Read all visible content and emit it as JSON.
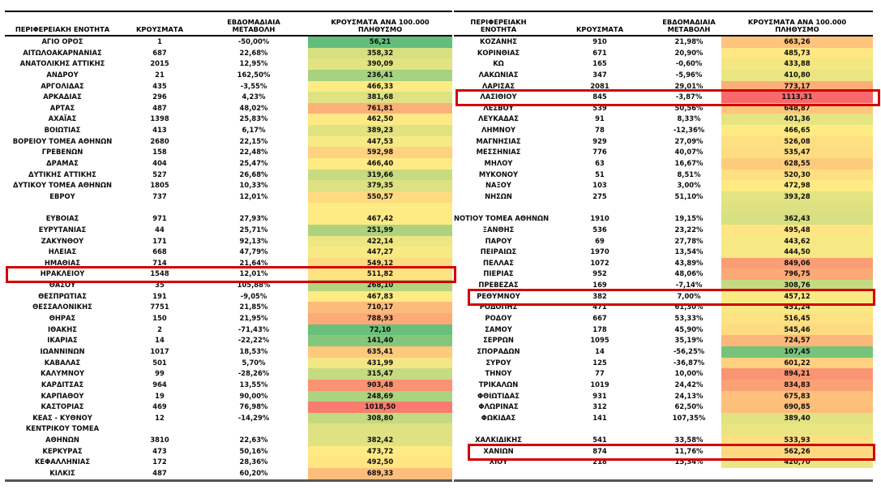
{
  "color_scale": {
    "min_value": 56.21,
    "mid_value": 467.42,
    "max_value": 1113.31,
    "min_color": "#63BE7B",
    "mid_color": "#FFEB84",
    "max_color": "#F8696B"
  },
  "highlight_color": "#d40000",
  "tables": [
    {
      "id": "left",
      "headers": {
        "region": "ΠΕΡΙΦΕΡΕΙΑΚΗ ΕΝΟΤΗΤΑ",
        "cases": "ΚΡΟΥΣΜΑΤΑ",
        "weekly": "ΕΒΔΟΜΑΔΙΑΙΑ\nΜΕΤΑΒΟΛΗ",
        "per100k": "ΚΡΟΥΣΜΑΤΑ ΑΝΑ 100.000\nΠΛΗΘΥΣΜΟ"
      },
      "rows": [
        {
          "region": "ΑΓΙΟ ΟΡΟΣ",
          "cases": "1",
          "weekly": "-50,00%",
          "per100k": "56,21",
          "v": 56.21
        },
        {
          "region": "ΑΙΤΩΛΟΑΚΑΡΝΑΝΙΑΣ",
          "cases": "687",
          "weekly": "22,68%",
          "per100k": "358,32",
          "v": 358.32
        },
        {
          "region": "ΑΝΑΤΟΛΙΚΗΣ ΑΤΤΙΚΗΣ",
          "cases": "2015",
          "weekly": "12,95%",
          "per100k": "390,09",
          "v": 390.09
        },
        {
          "region": "ΑΝΔΡΟΥ",
          "cases": "21",
          "weekly": "162,50%",
          "per100k": "236,41",
          "v": 236.41
        },
        {
          "region": "ΑΡΓΟΛΙΔΑΣ",
          "cases": "435",
          "weekly": "-3,55%",
          "per100k": "466,33",
          "v": 466.33
        },
        {
          "region": "ΑΡΚΑΔΙΑΣ",
          "cases": "296",
          "weekly": "4,23%",
          "per100k": "381,68",
          "v": 381.68
        },
        {
          "region": "ΑΡΤΑΣ",
          "cases": "487",
          "weekly": "48,02%",
          "per100k": "761,81",
          "v": 761.81
        },
        {
          "region": "ΑΧΑΪΑΣ",
          "cases": "1398",
          "weekly": "25,83%",
          "per100k": "462,50",
          "v": 462.5
        },
        {
          "region": "ΒΟΙΩΤΙΑΣ",
          "cases": "413",
          "weekly": "6,17%",
          "per100k": "389,23",
          "v": 389.23
        },
        {
          "region": "ΒΟΡΕΙΟΥ ΤΟΜΕΑ ΑΘΗΝΩΝ",
          "cases": "2680",
          "weekly": "22,15%",
          "per100k": "447,53",
          "v": 447.53
        },
        {
          "region": "ΓΡΕΒΕΝΩΝ",
          "cases": "158",
          "weekly": "22,48%",
          "per100k": "592,98",
          "v": 592.98
        },
        {
          "region": "ΔΡΑΜΑΣ",
          "cases": "404",
          "weekly": "25,47%",
          "per100k": "466,40",
          "v": 466.4
        },
        {
          "region": "ΔΥΤΙΚΗΣ ΑΤΤΙΚΗΣ",
          "cases": "527",
          "weekly": "26,68%",
          "per100k": "319,66",
          "v": 319.66
        },
        {
          "region": "ΔΥΤΙΚΟΥ ΤΟΜΕΑ ΑΘΗΝΩΝ",
          "cases": "1805",
          "weekly": "10,33%",
          "per100k": "379,35",
          "v": 379.35
        },
        {
          "region": "ΕΒΡΟΥ",
          "cases": "737",
          "weekly": "12,01%",
          "per100k": "550,57",
          "v": 550.57
        },
        {
          "region": "",
          "cases": "",
          "weekly": "",
          "per100k": "",
          "v": 467.0
        },
        {
          "region": "ΕΥΒΟΙΑΣ",
          "cases": "971",
          "weekly": "27,93%",
          "per100k": "467,42",
          "v": 467.42
        },
        {
          "region": "ΕΥΡΥΤΑΝΙΑΣ",
          "cases": "44",
          "weekly": "25,71%",
          "per100k": "251,99",
          "v": 251.99
        },
        {
          "region": "ΖΑΚΥΝΘΟΥ",
          "cases": "171",
          "weekly": "92,13%",
          "per100k": "422,14",
          "v": 422.14
        },
        {
          "region": "ΗΛΕΙΑΣ",
          "cases": "668",
          "weekly": "47,79%",
          "per100k": "447,27",
          "v": 447.27
        },
        {
          "region": "ΗΜΑΘΙΑΣ",
          "cases": "714",
          "weekly": "21,64%",
          "per100k": "549,12",
          "v": 549.12
        },
        {
          "region": "ΗΡΑΚΛΕΙΟΥ",
          "cases": "1548",
          "weekly": "12,01%",
          "per100k": "511,82",
          "v": 511.82,
          "highlight": true
        },
        {
          "region": "ΘΑΣΟΥ",
          "cases": "35",
          "weekly": "105,88%",
          "per100k": "268,10",
          "v": 268.1
        },
        {
          "region": "ΘΕΣΠΡΩΤΙΑΣ",
          "cases": "191",
          "weekly": "-9,05%",
          "per100k": "467,83",
          "v": 467.83
        },
        {
          "region": "ΘΕΣΣΑΛΟΝΙΚΗΣ",
          "cases": "7751",
          "weekly": "21,85%",
          "per100k": "710,17",
          "v": 710.17
        },
        {
          "region": "ΘΗΡΑΣ",
          "cases": "150",
          "weekly": "21,95%",
          "per100k": "788,93",
          "v": 788.93
        },
        {
          "region": "ΙΘΑΚΗΣ",
          "cases": "2",
          "weekly": "-71,43%",
          "per100k": "72,10",
          "v": 72.1
        },
        {
          "region": "ΙΚΑΡΙΑΣ",
          "cases": "14",
          "weekly": "-22,22%",
          "per100k": "141,40",
          "v": 141.4
        },
        {
          "region": "ΙΩΑΝΝΙΝΩΝ",
          "cases": "1017",
          "weekly": "18,53%",
          "per100k": "635,41",
          "v": 635.41
        },
        {
          "region": "ΚΑΒΑΛΑΣ",
          "cases": "501",
          "weekly": "5,70%",
          "per100k": "431,99",
          "v": 431.99
        },
        {
          "region": "ΚΑΛΥΜΝΟΥ",
          "cases": "99",
          "weekly": "-28,26%",
          "per100k": "315,47",
          "v": 315.47
        },
        {
          "region": "ΚΑΡΔΙΤΣΑΣ",
          "cases": "964",
          "weekly": "13,55%",
          "per100k": "903,48",
          "v": 903.48
        },
        {
          "region": "ΚΑΡΠΑΘΟΥ",
          "cases": "19",
          "weekly": "90,00%",
          "per100k": "248,69",
          "v": 248.69
        },
        {
          "region": "ΚΑΣΤΟΡΙΑΣ",
          "cases": "469",
          "weekly": "76,98%",
          "per100k": "1018,50",
          "v": 1018.5
        },
        {
          "region": "ΚΕΑΣ - ΚΥΘΝΟΥ",
          "cases": "12",
          "weekly": "-14,29%",
          "per100k": "308,80",
          "v": 308.8
        },
        {
          "region": "ΚΕΝΤΡΙΚΟΥ ΤΟΜΕΑ",
          "cases": "",
          "weekly": "",
          "per100k": "",
          "v": 382.42
        },
        {
          "region": "ΑΘΗΝΩΝ",
          "cases": "3810",
          "weekly": "22,63%",
          "per100k": "382,42",
          "v": 382.42
        },
        {
          "region": "ΚΕΡΚΥΡΑΣ",
          "cases": "473",
          "weekly": "50,16%",
          "per100k": "473,72",
          "v": 473.72
        },
        {
          "region": "ΚΕΦΑΛΛΗΝΙΑΣ",
          "cases": "172",
          "weekly": "28,36%",
          "per100k": "492,50",
          "v": 492.5
        },
        {
          "region": "ΚΙΛΚΙΣ",
          "cases": "487",
          "weekly": "60,20%",
          "per100k": "689,33",
          "v": 689.33
        }
      ]
    },
    {
      "id": "right",
      "headers": {
        "region": "ΠΕΡΙΦΕΡΕΙΑΚΗ\nΕΝΟΤΗΤΑ",
        "cases": "ΚΡΟΥΣΜΑΤΑ",
        "weekly": "ΕΒΔΟΜΑΔΙΑΙΑ\nΜΕΤΑΒΟΛΗ",
        "per100k": "ΚΡΟΥΣΜΑΤΑ ΑΝΑ 100.000\nΠΛΗΘΥΣΜΟ"
      },
      "rows": [
        {
          "region": "ΚΟΖΑΝΗΣ",
          "cases": "910",
          "weekly": "21,98%",
          "per100k": "663,26",
          "v": 663.26
        },
        {
          "region": "ΚΟΡΙΝΘΙΑΣ",
          "cases": "671",
          "weekly": "20,90%",
          "per100k": "485,73",
          "v": 485.73
        },
        {
          "region": "ΚΩ",
          "cases": "165",
          "weekly": "-0,60%",
          "per100k": "433,88",
          "v": 433.88
        },
        {
          "region": "ΛΑΚΩΝΙΑΣ",
          "cases": "347",
          "weekly": "-5,96%",
          "per100k": "410,80",
          "v": 410.8
        },
        {
          "region": "ΛΑΡΙΣΑΣ",
          "cases": "2081",
          "weekly": "29,01%",
          "per100k": "773,17",
          "v": 773.17
        },
        {
          "region": "ΛΑΣΙΘΙΟΥ",
          "cases": "845",
          "weekly": "-3,87%",
          "per100k": "1113,31",
          "v": 1113.31,
          "highlight": true
        },
        {
          "region": "ΛΕΣΒΟΥ",
          "cases": "539",
          "weekly": "50,56%",
          "per100k": "648,87",
          "v": 648.87
        },
        {
          "region": "ΛΕΥΚΑΔΑΣ",
          "cases": "91",
          "weekly": "8,33%",
          "per100k": "401,36",
          "v": 401.36
        },
        {
          "region": "ΛΗΜΝΟΥ",
          "cases": "78",
          "weekly": "-12,36%",
          "per100k": "466,65",
          "v": 466.65
        },
        {
          "region": "ΜΑΓΝΗΣΙΑΣ",
          "cases": "929",
          "weekly": "27,09%",
          "per100k": "526,08",
          "v": 526.08
        },
        {
          "region": "ΜΕΣΣΗΝΙΑΣ",
          "cases": "776",
          "weekly": "40,07%",
          "per100k": "535,47",
          "v": 535.47
        },
        {
          "region": "ΜΗΛΟΥ",
          "cases": "63",
          "weekly": "16,67%",
          "per100k": "628,55",
          "v": 628.55
        },
        {
          "region": "ΜΥΚΟΝΟΥ",
          "cases": "51",
          "weekly": "8,51%",
          "per100k": "520,30",
          "v": 520.3
        },
        {
          "region": "ΝΑΞΟΥ",
          "cases": "103",
          "weekly": "3,00%",
          "per100k": "472,98",
          "v": 472.98
        },
        {
          "region": "ΝΗΣΩΝ",
          "cases": "275",
          "weekly": "51,10%",
          "per100k": "393,28",
          "v": 393.28
        },
        {
          "region": "",
          "cases": "",
          "weekly": "",
          "per100k": "",
          "v": 378.0
        },
        {
          "region": "ΝΟΤΙΟΥ ΤΟΜΕΑ ΑΘΗΝΩΝ",
          "cases": "1910",
          "weekly": "19,15%",
          "per100k": "362,43",
          "v": 362.43
        },
        {
          "region": "ΞΑΝΘΗΣ",
          "cases": "536",
          "weekly": "23,22%",
          "per100k": "495,48",
          "v": 495.48
        },
        {
          "region": "ΠΑΡΟΥ",
          "cases": "69",
          "weekly": "27,78%",
          "per100k": "443,62",
          "v": 443.62
        },
        {
          "region": "ΠΕΙΡΑΙΩΣ",
          "cases": "1970",
          "weekly": "13,54%",
          "per100k": "444,50",
          "v": 444.5
        },
        {
          "region": "ΠΕΛΛΑΣ",
          "cases": "1072",
          "weekly": "43,89%",
          "per100k": "849,06",
          "v": 849.06
        },
        {
          "region": "ΠΙΕΡΙΑΣ",
          "cases": "952",
          "weekly": "48,06%",
          "per100k": "796,75",
          "v": 796.75
        },
        {
          "region": "ΠΡΕΒΕΖΑΣ",
          "cases": "169",
          "weekly": "-7,14%",
          "per100k": "308,76",
          "v": 308.76
        },
        {
          "region": "ΡΕΘΥΜΝΟΥ",
          "cases": "382",
          "weekly": "7,00%",
          "per100k": "457,12",
          "v": 457.12,
          "highlight": true
        },
        {
          "region": "ΡΟΔΟΠΗΣ",
          "cases": "471",
          "weekly": "61,30%",
          "per100k": "451,24",
          "v": 451.24
        },
        {
          "region": "ΡΟΔΟΥ",
          "cases": "667",
          "weekly": "53,33%",
          "per100k": "516,45",
          "v": 516.45
        },
        {
          "region": "ΣΑΜΟΥ",
          "cases": "178",
          "weekly": "45,90%",
          "per100k": "545,46",
          "v": 545.46
        },
        {
          "region": "ΣΕΡΡΩΝ",
          "cases": "1095",
          "weekly": "35,19%",
          "per100k": "724,57",
          "v": 724.57
        },
        {
          "region": "ΣΠΟΡΑΔΩΝ",
          "cases": "14",
          "weekly": "-56,25%",
          "per100k": "107,45",
          "v": 107.45
        },
        {
          "region": "ΣΥΡΟΥ",
          "cases": "125",
          "weekly": "-36,87%",
          "per100k": "601,22",
          "v": 601.22
        },
        {
          "region": "ΤΗΝΟΥ",
          "cases": "77",
          "weekly": "10,00%",
          "per100k": "894,21",
          "v": 894.21
        },
        {
          "region": "ΤΡΙΚΑΛΩΝ",
          "cases": "1019",
          "weekly": "24,42%",
          "per100k": "834,83",
          "v": 834.83
        },
        {
          "region": "ΦΘΙΩΤΙΔΑΣ",
          "cases": "931",
          "weekly": "24,13%",
          "per100k": "675,83",
          "v": 675.83
        },
        {
          "region": "ΦΛΩΡΙΝΑΣ",
          "cases": "312",
          "weekly": "62,50%",
          "per100k": "690,85",
          "v": 690.85
        },
        {
          "region": "ΦΩΚΙΔΑΣ",
          "cases": "141",
          "weekly": "107,35%",
          "per100k": "389,40",
          "v": 389.4
        },
        {
          "region": "",
          "cases": "",
          "weekly": "",
          "per100k": "",
          "v": 410.0
        },
        {
          "region": "ΧΑΛΚΙΔΙΚΗΣ",
          "cases": "541",
          "weekly": "33,58%",
          "per100k": "533,93",
          "v": 533.93
        },
        {
          "region": "ΧΑΝΙΩΝ",
          "cases": "874",
          "weekly": "11,76%",
          "per100k": "562,26",
          "v": 562.26,
          "highlight": true
        },
        {
          "region": "ΧΙΟΥ",
          "cases": "218",
          "weekly": "15,34%",
          "per100k": "420,70",
          "v": 420.7
        },
        {
          "region": "",
          "cases": "",
          "weekly": "",
          "per100k": "",
          "v": null
        }
      ]
    }
  ]
}
